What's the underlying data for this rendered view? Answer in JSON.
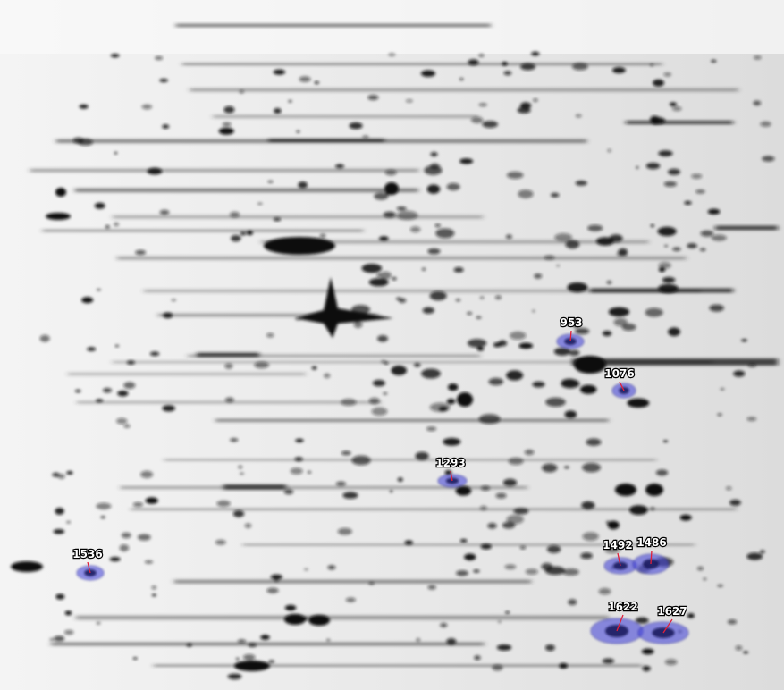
{
  "spots": [
    {
      "label": "953"
    },
    {
      "label": "1076"
    },
    {
      "label": "1293"
    },
    {
      "label": "1536"
    },
    {
      "label": "1492"
    },
    {
      "label": "1486"
    },
    {
      "label": "1622"
    },
    {
      "label": "1627"
    }
  ]
}
